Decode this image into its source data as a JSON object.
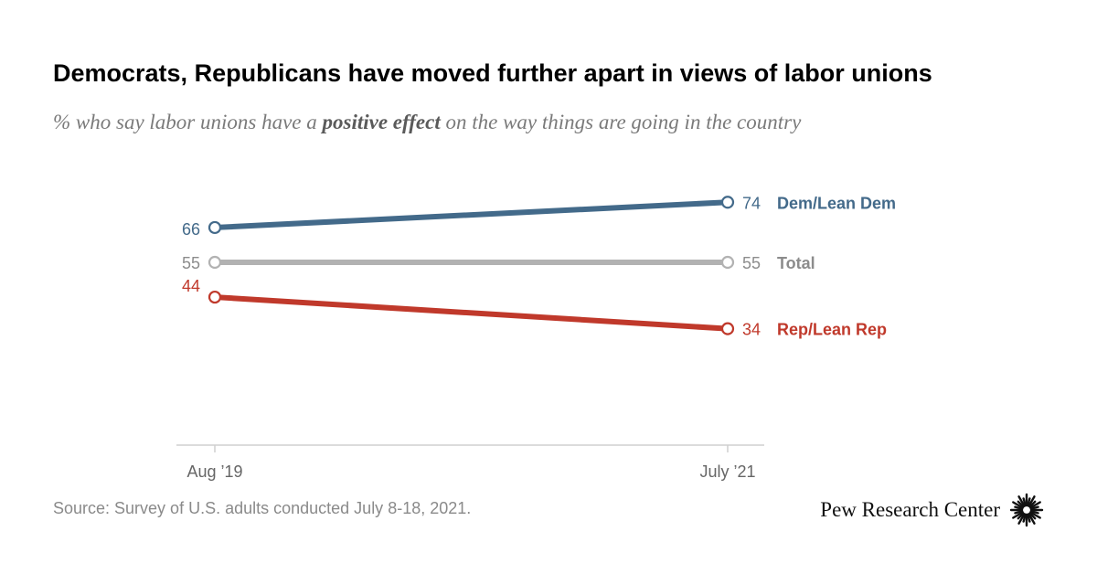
{
  "header": {
    "title": "Democrats, Republicans have moved further apart in views of labor unions",
    "subtitle_pre": "% who say labor unions have a ",
    "subtitle_emph": "positive effect",
    "subtitle_post": " on the way things are going in the country"
  },
  "footer": {
    "source": "Source: Survey of U.S. adults conducted July 8-18, 2021.",
    "brand": "Pew Research Center",
    "brand_icon": "pew-logo-icon"
  },
  "chart_data": {
    "type": "line",
    "title": "Democrats, Republicans have moved further apart in views of labor unions",
    "subtitle": "% who say labor unions have a positive effect on the way things are going in the country",
    "xlabel": "",
    "ylabel": "",
    "categories": [
      "Aug ’19",
      "July ’21"
    ],
    "ylim": [
      0,
      100
    ],
    "grid": false,
    "legend": "direct labels at right end of lines",
    "series": [
      {
        "name": "Dem/Lean Dem",
        "values": [
          66,
          74
        ],
        "color": "#436a8a"
      },
      {
        "name": "Total",
        "values": [
          55,
          55
        ],
        "color": "#b2b2b2"
      },
      {
        "name": "Rep/Lean Rep",
        "values": [
          44,
          34
        ],
        "color": "#c0392b"
      }
    ]
  },
  "colors": {
    "dem_label": "#436a8a",
    "total_label": "#8c8c8c",
    "rep_label": "#c0392b",
    "axis": "#cfcfcf",
    "tick_label": "#666666"
  }
}
